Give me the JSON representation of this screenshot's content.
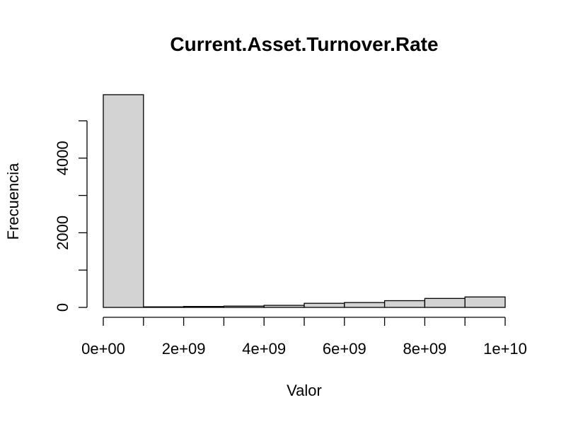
{
  "chart_data": {
    "type": "bar",
    "title": "Current.Asset.Turnover.Rate",
    "xlabel": "Valor",
    "ylabel": "Frecuencia",
    "bins": [
      {
        "from": 0,
        "to": 1000000000,
        "count": 5700
      },
      {
        "from": 1000000000,
        "to": 2000000000,
        "count": 15
      },
      {
        "from": 2000000000,
        "to": 3000000000,
        "count": 25
      },
      {
        "from": 3000000000,
        "to": 4000000000,
        "count": 35
      },
      {
        "from": 4000000000,
        "to": 5000000000,
        "count": 55
      },
      {
        "from": 5000000000,
        "to": 6000000000,
        "count": 110
      },
      {
        "from": 6000000000,
        "to": 7000000000,
        "count": 130
      },
      {
        "from": 7000000000,
        "to": 8000000000,
        "count": 180
      },
      {
        "from": 8000000000,
        "to": 9000000000,
        "count": 240
      },
      {
        "from": 9000000000,
        "to": 10000000000,
        "count": 280
      }
    ],
    "xlim": [
      0,
      10000000000
    ],
    "ylim": [
      0,
      5700
    ],
    "xticks": [
      {
        "value": 0,
        "label": "0e+00"
      },
      {
        "value": 2000000000,
        "label": "2e+09"
      },
      {
        "value": 4000000000,
        "label": "4e+09"
      },
      {
        "value": 6000000000,
        "label": "6e+09"
      },
      {
        "value": 8000000000,
        "label": "8e+09"
      },
      {
        "value": 10000000000,
        "label": "1e+10"
      }
    ],
    "xminor_ticks": [
      1000000000,
      3000000000,
      5000000000,
      7000000000,
      9000000000
    ],
    "yticks": [
      {
        "value": 0,
        "label": "0"
      },
      {
        "value": 1000,
        "label": ""
      },
      {
        "value": 2000,
        "label": "2000"
      },
      {
        "value": 3000,
        "label": ""
      },
      {
        "value": 4000,
        "label": "4000"
      },
      {
        "value": 5000,
        "label": ""
      }
    ],
    "grid": false,
    "bar_color": "#d3d3d3",
    "edge_color": "#000000"
  }
}
